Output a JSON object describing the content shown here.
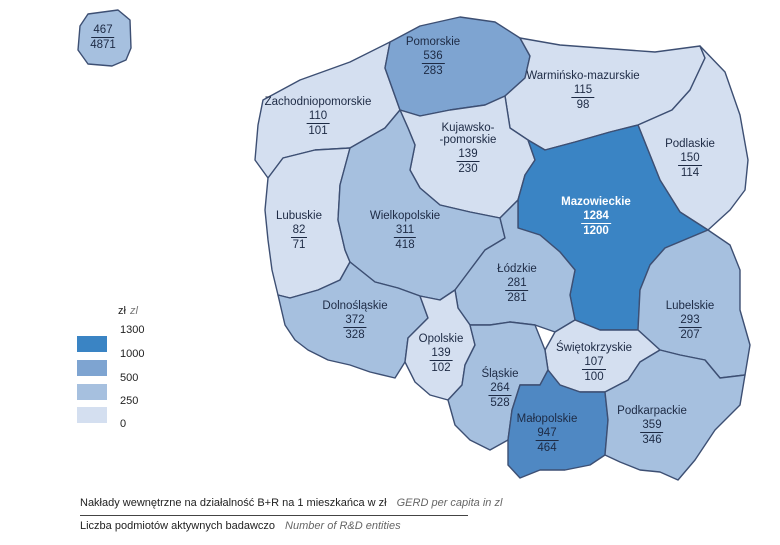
{
  "inset": {
    "gerd": "467",
    "entities": "4871"
  },
  "regions": [
    {
      "id": "pomorskie",
      "name": "Pomorskie",
      "gerd": "536",
      "entities": "283",
      "color": "fill-2"
    },
    {
      "id": "warminsko",
      "name": "Warmińsko-mazurskie",
      "gerd": "115",
      "entities": "98",
      "color": "fill-0"
    },
    {
      "id": "zachodnio",
      "name": "Zachodniopomorskie",
      "gerd": "110",
      "entities": "101",
      "color": "fill-0"
    },
    {
      "id": "kujawsko",
      "name": "Kujawsko-\n-pomorskie",
      "gerd": "139",
      "entities": "230",
      "color": "fill-0"
    },
    {
      "id": "podlaskie",
      "name": "Podlaskie",
      "gerd": "150",
      "entities": "114",
      "color": "fill-0"
    },
    {
      "id": "mazowieckie",
      "name": "Mazowieckie",
      "gerd": "1284",
      "entities": "1200",
      "color": "fill-4"
    },
    {
      "id": "lubuskie",
      "name": "Lubuskie",
      "gerd": "82",
      "entities": "71",
      "color": "fill-0"
    },
    {
      "id": "wielkopolskie",
      "name": "Wielkopolskie",
      "gerd": "311",
      "entities": "418",
      "color": "fill-1"
    },
    {
      "id": "lodzkie",
      "name": "Łódzkie",
      "gerd": "281",
      "entities": "281",
      "color": "fill-1"
    },
    {
      "id": "lubelskie",
      "name": "Lubelskie",
      "gerd": "293",
      "entities": "207",
      "color": "fill-1"
    },
    {
      "id": "dolnoslaskie",
      "name": "Dolnośląskie",
      "gerd": "372",
      "entities": "328",
      "color": "fill-1"
    },
    {
      "id": "opolskie",
      "name": "Opolskie",
      "gerd": "139",
      "entities": "102",
      "color": "fill-0"
    },
    {
      "id": "swietokrzyskie",
      "name": "Świętokrzyskie",
      "gerd": "107",
      "entities": "100",
      "color": "fill-0"
    },
    {
      "id": "slaskie",
      "name": "Śląskie",
      "gerd": "264",
      "entities": "528",
      "color": "fill-1"
    },
    {
      "id": "malopolskie",
      "name": "Małopolskie",
      "gerd": "947",
      "entities": "464",
      "color": "fill-3"
    },
    {
      "id": "podkarpackie",
      "name": "Podkarpackie",
      "gerd": "359",
      "entities": "346",
      "color": "fill-1"
    }
  ],
  "legend": {
    "unit": "zł",
    "unit_en": "zl",
    "ticks": [
      "1300",
      "1000",
      "500",
      "250",
      "0"
    ],
    "colors": [
      "#3a84c4",
      "#7ea4d1",
      "#a6c0df",
      "#d4dff0"
    ]
  },
  "footer": {
    "line1_pl": "Nakłady wewnętrzne na działalność B+R na 1 mieszkańca w zł",
    "line1_en": "GERD per capita in zl",
    "line2_pl": "Liczba podmiotów aktywnych badawczo",
    "line2_en": "Number of R&D entities"
  }
}
